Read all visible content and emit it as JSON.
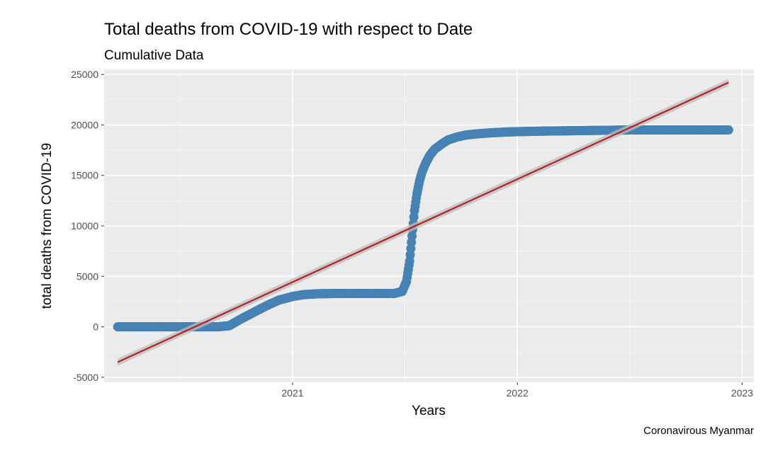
{
  "chart_data": {
    "type": "scatter",
    "title": "Total deaths from COVID-19 with respect to Date",
    "subtitle": "Cumulative Data",
    "xlabel": "Years",
    "ylabel": "total deaths from COVID-19",
    "caption": "Coronavirous Myanmar",
    "xlim": [
      "2020-03-01",
      "2023-01-20"
    ],
    "ylim": [
      -5500,
      25500
    ],
    "x_ticks": [
      "2021",
      "2022",
      "2023"
    ],
    "x_tick_dates": [
      "2021-01-01",
      "2022-01-01",
      "2023-01-01"
    ],
    "y_ticks": [
      -5000,
      0,
      5000,
      10000,
      15000,
      20000,
      25000
    ],
    "grid": true,
    "background": "#ebebeb",
    "series": [
      {
        "kind": "points",
        "color": "#4682b4",
        "x": [
          "2020-03-23",
          "2020-05-01",
          "2020-06-15",
          "2020-08-01",
          "2020-09-01",
          "2020-09-20",
          "2020-10-10",
          "2020-11-01",
          "2020-11-20",
          "2020-12-10",
          "2021-01-01",
          "2021-01-20",
          "2021-02-15",
          "2021-03-15",
          "2021-04-15",
          "2021-05-15",
          "2021-06-15",
          "2021-06-28",
          "2021-07-05",
          "2021-07-10",
          "2021-07-14",
          "2021-07-18",
          "2021-07-22",
          "2021-07-26",
          "2021-07-30",
          "2021-08-05",
          "2021-08-12",
          "2021-08-20",
          "2021-08-31",
          "2021-09-10",
          "2021-09-25",
          "2021-10-10",
          "2021-10-25",
          "2021-11-15",
          "2021-12-15",
          "2022-01-15",
          "2022-03-01",
          "2022-05-01",
          "2022-07-01",
          "2022-09-01",
          "2022-11-01",
          "2022-12-10"
        ],
        "y": [
          0,
          0,
          0,
          0,
          0,
          100,
          800,
          1500,
          2100,
          2650,
          3000,
          3200,
          3280,
          3300,
          3300,
          3300,
          3300,
          3500,
          4500,
          6500,
          9000,
          11500,
          13200,
          14400,
          15300,
          16200,
          17000,
          17600,
          18100,
          18500,
          18800,
          19000,
          19100,
          19200,
          19300,
          19350,
          19400,
          19450,
          19500,
          19500,
          19500,
          19500
        ]
      },
      {
        "kind": "linear-fit",
        "color": "#b22222",
        "band_color": "#bebebe",
        "x": [
          "2020-03-23",
          "2022-12-10"
        ],
        "y": [
          -3500,
          24200
        ]
      }
    ]
  }
}
